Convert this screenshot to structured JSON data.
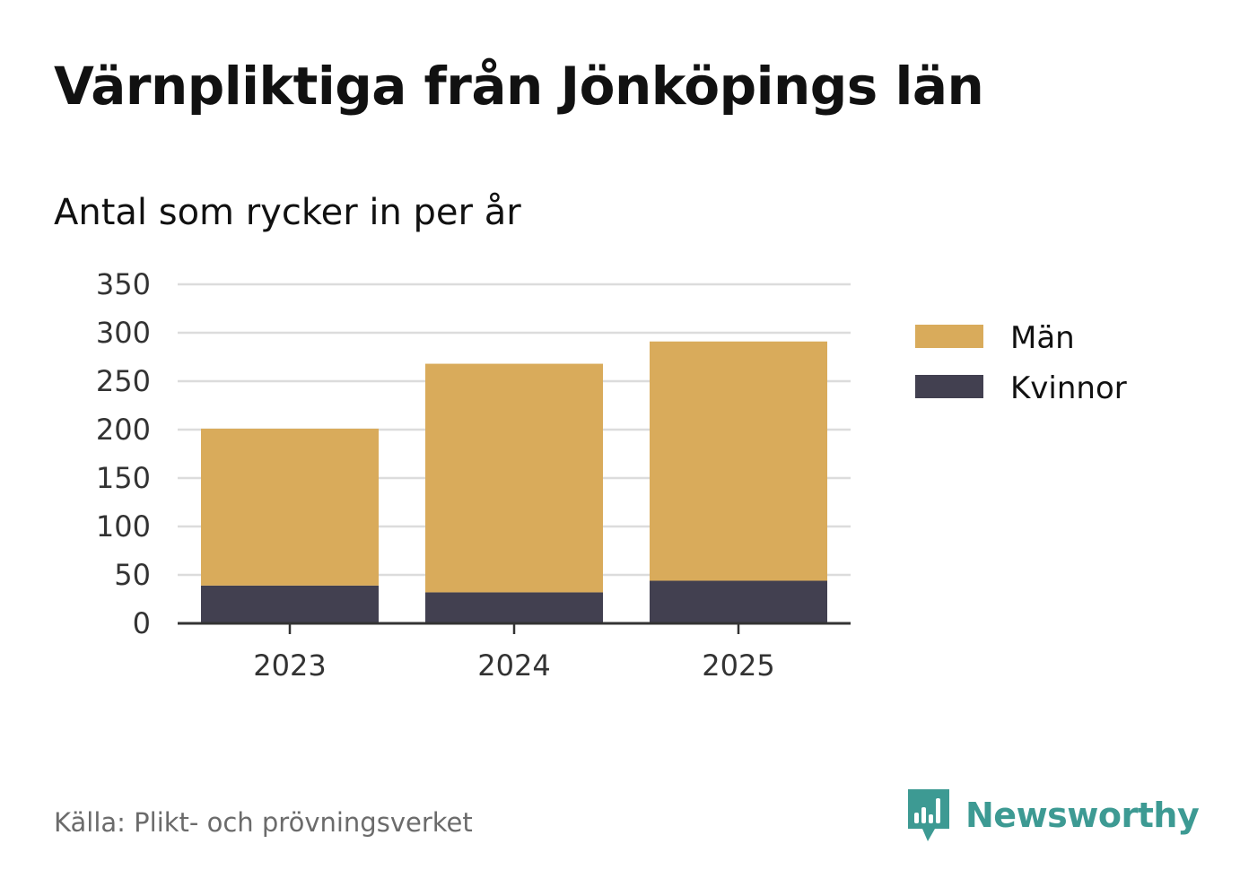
{
  "header": {
    "title": "Värnpliktiga från Jönköpings län",
    "subtitle": "Antal som rycker in per år"
  },
  "footer": {
    "source": "Källa: Plikt- och prövningsverket",
    "brand_name": "Newsworthy",
    "brand_icon": "newsworthy-logo-icon"
  },
  "colors": {
    "man": "#d9ab5b",
    "kvinnor": "#424050",
    "grid": "#dcdcdc",
    "axis": "#333333",
    "brand": "#3d9a93"
  },
  "chart_data": {
    "type": "bar",
    "stacked": true,
    "title": "Värnpliktiga från Jönköpings län",
    "subtitle": "Antal som rycker in per år",
    "categories": [
      "2023",
      "2024",
      "2025"
    ],
    "series": [
      {
        "name": "Kvinnor",
        "values": [
          39,
          32,
          44
        ],
        "color": "#424050"
      },
      {
        "name": "Män",
        "values": [
          162,
          236,
          247
        ],
        "color": "#d9ab5b"
      }
    ],
    "legend_order": [
      "Män",
      "Kvinnor"
    ],
    "yticks": [
      "0",
      "50",
      "100",
      "150",
      "200",
      "250",
      "300",
      "350"
    ],
    "ylim": [
      0,
      350
    ],
    "xlabel": "",
    "ylabel": "",
    "grid": true,
    "legend_position": "right"
  }
}
